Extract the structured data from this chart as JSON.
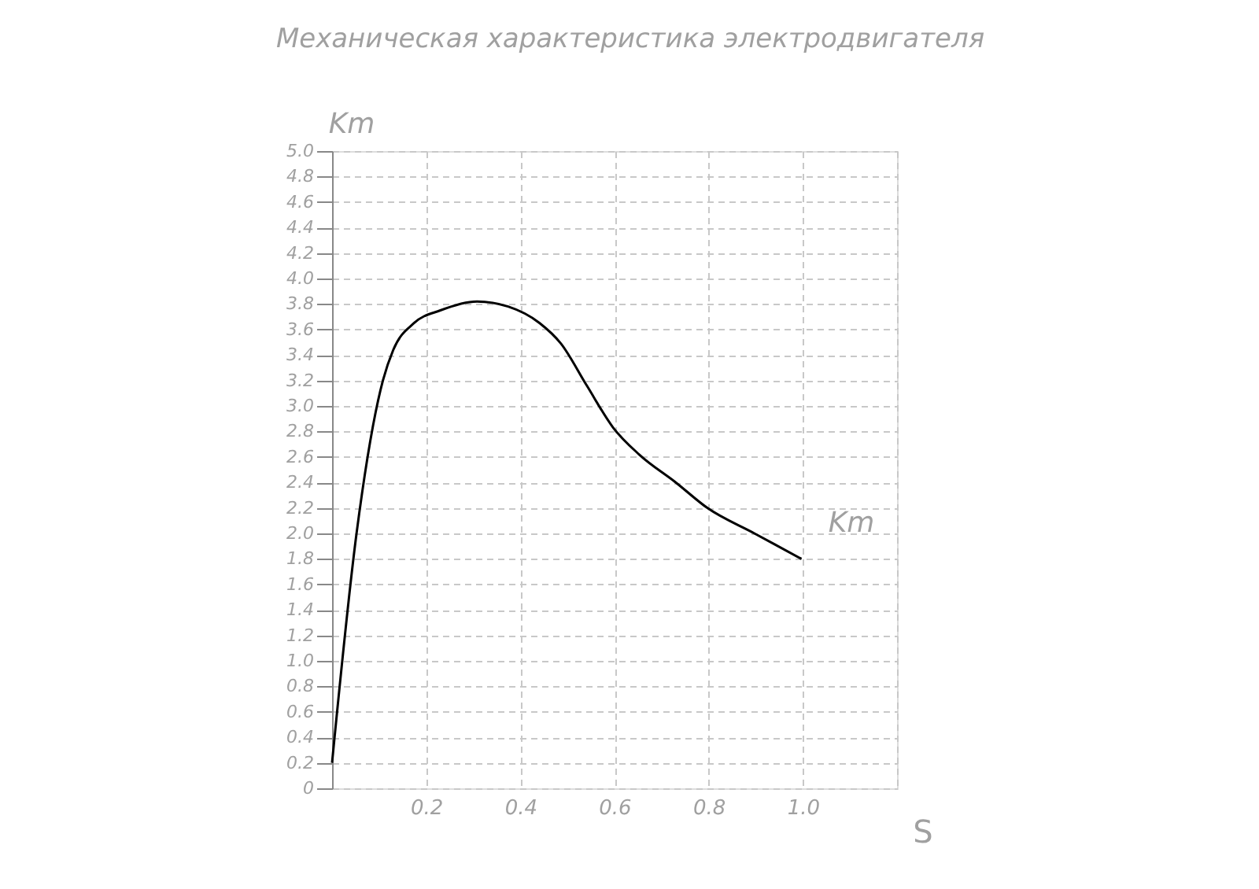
{
  "chart_data": {
    "type": "line",
    "title": "Механическая характеристика электродвигателя",
    "xlabel": "S",
    "ylabel": "Km",
    "x": [
      0,
      0.052,
      0.108,
      0.13,
      0.174,
      0.23,
      0.308,
      0.374,
      0.441,
      0.486,
      0.541,
      0.597,
      0.652,
      0.73,
      0.797,
      0.897,
      0.997
    ],
    "series": [
      {
        "color": "#000000",
        "values": [
          0.2,
          2.0,
          3.2,
          3.44,
          3.65,
          3.75,
          3.82,
          3.78,
          3.65,
          3.49,
          3.16,
          2.83,
          2.62,
          2.4,
          2.2,
          2.0,
          1.8
        ]
      }
    ],
    "xlim": [
      0,
      1.2
    ],
    "xticks": [
      {
        "value": 0,
        "label": null
      },
      0.2,
      0.4,
      0.6,
      0.8,
      {
        "value": 1.0,
        "label": "1.0"
      },
      {
        "value": 1.2,
        "label": null
      }
    ],
    "ylim": [
      0,
      5
    ],
    "yticks": [
      {
        "value": 0,
        "label": "0"
      },
      0.2,
      0.4,
      0.6,
      0.8,
      {
        "value": 1.0,
        "label": "1.0"
      },
      1.2,
      1.4,
      1.6,
      1.8,
      {
        "value": 2.0,
        "label": "2.0"
      },
      2.2,
      2.4,
      2.6,
      2.8,
      {
        "value": 3.0,
        "label": "3.0"
      },
      3.2,
      3.4,
      3.6,
      3.8,
      {
        "value": 4.0,
        "label": "4.0"
      },
      4.2,
      4.4,
      4.6,
      4.8,
      {
        "value": 5.0,
        "label": "5.0"
      }
    ],
    "annotations": [
      "Km"
    ],
    "grid": true,
    "marker": "none",
    "line_style": "solid"
  }
}
